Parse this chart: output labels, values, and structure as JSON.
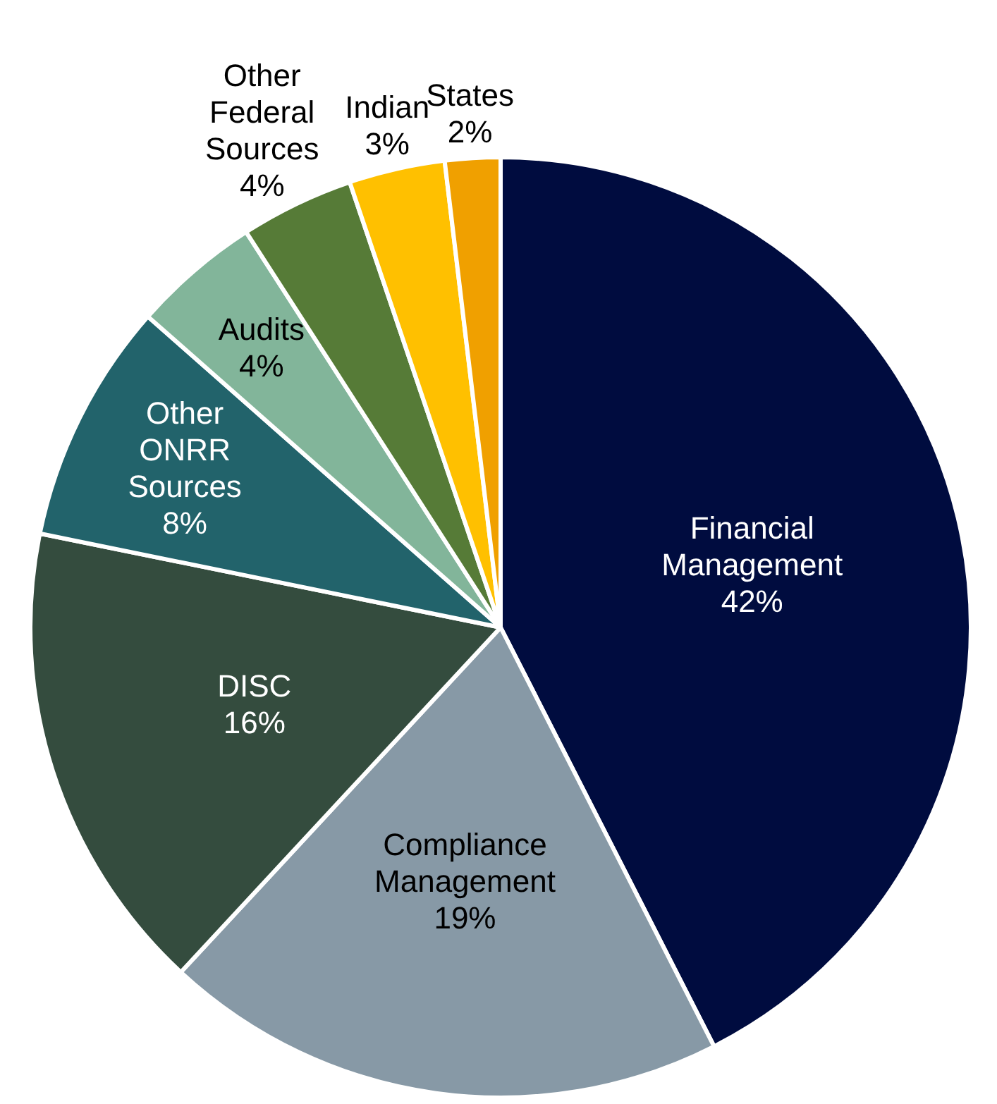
{
  "chart_data": {
    "type": "pie",
    "categories": [
      "Financial Management",
      "Compliance Management",
      "DISC",
      "Other ONRR Sources",
      "Audits",
      "Other Federal Sources",
      "Indian",
      "States"
    ],
    "values": [
      42.5,
      19.4,
      16.3,
      8.3,
      4.4,
      3.9,
      3.3,
      1.9
    ],
    "value_labels": [
      "42%",
      "19%",
      "16%",
      "8%",
      "4%",
      "4%",
      "3%",
      "2%"
    ],
    "colors": [
      "#000c3f",
      "#8799a6",
      "#344c3e",
      "#22636b",
      "#82b59a",
      "#567b37",
      "#ffc000",
      "#f0a000"
    ],
    "legend": false
  }
}
